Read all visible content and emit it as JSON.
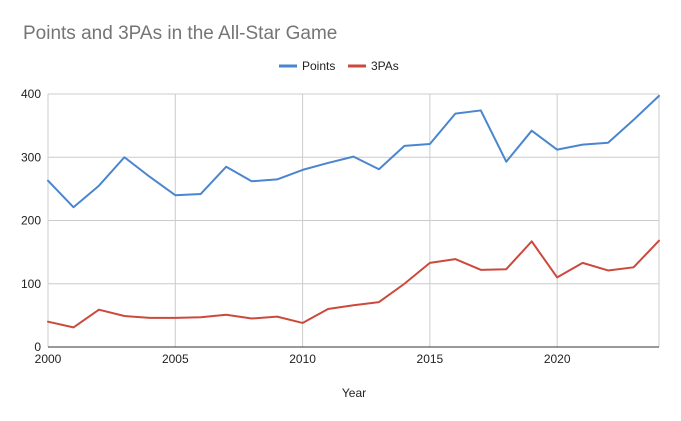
{
  "chart_data": {
    "type": "line",
    "title": "Points and 3PAs in the All-Star Game",
    "xlabel": "Year",
    "ylabel": "",
    "xlim": [
      2000,
      2024
    ],
    "ylim": [
      0,
      400
    ],
    "x_ticks": [
      2000,
      2005,
      2010,
      2015,
      2020
    ],
    "y_ticks": [
      0,
      100,
      200,
      300,
      400
    ],
    "grid": true,
    "legend_position": "top-center",
    "x": [
      2000,
      2001,
      2002,
      2003,
      2004,
      2005,
      2006,
      2007,
      2008,
      2009,
      2010,
      2011,
      2012,
      2013,
      2014,
      2015,
      2016,
      2017,
      2018,
      2019,
      2020,
      2021,
      2022,
      2023,
      2024
    ],
    "series": [
      {
        "name": "Points",
        "color": "#4a86cf",
        "values": [
          263,
          221,
          255,
          300,
          269,
          240,
          242,
          285,
          262,
          265,
          280,
          291,
          301,
          281,
          318,
          321,
          369,
          374,
          293,
          342,
          312,
          320,
          323,
          359,
          397
        ]
      },
      {
        "name": "3PAs",
        "color": "#cc4a3c",
        "values": [
          40,
          31,
          59,
          49,
          46,
          46,
          47,
          51,
          45,
          48,
          38,
          60,
          66,
          71,
          100,
          133,
          139,
          122,
          123,
          167,
          110,
          133,
          121,
          126,
          168
        ]
      }
    ]
  }
}
